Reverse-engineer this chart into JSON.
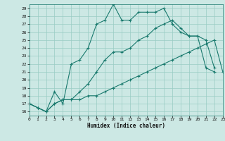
{
  "xlabel": "Humidex (Indice chaleur)",
  "bg_color": "#cce8e4",
  "grid_color": "#99ccc4",
  "line_color": "#1a7a6e",
  "xlim": [
    0,
    23
  ],
  "ylim": [
    15.5,
    29.5
  ],
  "xticks": [
    0,
    1,
    2,
    3,
    4,
    5,
    6,
    7,
    8,
    9,
    10,
    11,
    12,
    13,
    14,
    15,
    16,
    17,
    18,
    19,
    20,
    21,
    22,
    23
  ],
  "yticks": [
    16,
    17,
    18,
    19,
    20,
    21,
    22,
    23,
    24,
    25,
    26,
    27,
    28,
    29
  ],
  "line1_x": [
    0,
    1,
    2,
    3,
    4,
    5,
    6,
    7,
    8,
    9,
    10,
    11,
    12,
    13,
    14,
    15,
    16,
    17,
    18,
    19,
    20,
    21,
    22
  ],
  "line1_y": [
    17.0,
    16.5,
    16.0,
    18.5,
    17.0,
    22.0,
    22.5,
    24.0,
    27.0,
    27.5,
    29.5,
    27.5,
    27.5,
    28.5,
    28.5,
    28.5,
    29.0,
    27.0,
    26.0,
    25.5,
    25.5,
    25.0,
    21.5
  ],
  "line2_x": [
    0,
    1,
    2,
    3,
    4,
    5,
    6,
    7,
    8,
    9,
    10,
    11,
    12,
    13,
    14,
    15,
    16,
    17,
    18,
    19,
    20,
    21,
    22,
    23
  ],
  "line2_y": [
    17.0,
    16.5,
    16.0,
    17.0,
    17.5,
    17.5,
    17.5,
    18.0,
    18.0,
    18.5,
    19.0,
    19.5,
    20.0,
    20.5,
    21.0,
    21.5,
    22.0,
    22.5,
    23.0,
    23.5,
    24.0,
    24.5,
    25.0,
    21.0
  ],
  "line3_x": [
    0,
    1,
    2,
    3,
    4,
    5,
    6,
    7,
    8,
    9,
    10,
    11,
    12,
    13,
    14,
    15,
    16,
    17,
    18,
    19,
    20,
    21,
    22
  ],
  "line3_y": [
    17.0,
    16.5,
    16.0,
    17.0,
    17.5,
    17.5,
    18.5,
    19.5,
    21.0,
    22.5,
    23.5,
    23.5,
    24.0,
    25.0,
    25.5,
    26.5,
    27.0,
    27.5,
    26.5,
    25.5,
    25.5,
    21.5,
    21.0
  ]
}
